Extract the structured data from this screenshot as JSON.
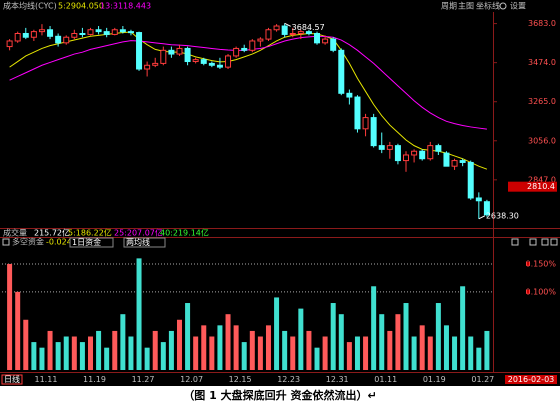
{
  "chart_data": [
    {
      "type": "candlestick",
      "title": "成本均线(CYC)",
      "categories": [
        null,
        null,
        null,
        null,
        "11.11",
        null,
        null,
        null,
        null,
        null,
        "11.19",
        null,
        null,
        null,
        null,
        null,
        "11.27",
        null,
        null,
        null,
        null,
        null,
        "12.07",
        null,
        null,
        null,
        null,
        null,
        "12.15",
        null,
        null,
        null,
        null,
        null,
        "12.23",
        null,
        null,
        null,
        null,
        null,
        "12.31",
        null,
        null,
        null,
        null,
        null,
        "01.11",
        null,
        null,
        null,
        null,
        null,
        "01.19",
        null,
        null,
        null,
        null,
        null,
        "01.27",
        null
      ],
      "open": [
        3560,
        3590,
        3630,
        3610,
        3640,
        3650,
        3615,
        3580,
        3610,
        3630,
        3625,
        3650,
        3640,
        3625,
        3650,
        3640,
        3635,
        3440,
        3460,
        3470,
        3540,
        3520,
        3550,
        3480,
        3490,
        3470,
        3460,
        3450,
        3510,
        3550,
        3540,
        3590,
        3600,
        3650,
        3670,
        3625,
        3630,
        3640,
        3630,
        3580,
        3600,
        3540,
        3310,
        3290,
        3120,
        3180,
        3030,
        3010,
        3030,
        2950,
        2980,
        3000,
        2960,
        3030,
        2990,
        2920,
        2950,
        2940,
        2750,
        2730
      ],
      "high": [
        3600,
        3640,
        3660,
        3650,
        3680,
        3670,
        3630,
        3620,
        3650,
        3660,
        3660,
        3670,
        3660,
        3660,
        3670,
        3650,
        3640,
        3480,
        3500,
        3560,
        3560,
        3570,
        3560,
        3500,
        3500,
        3480,
        3500,
        3520,
        3560,
        3570,
        3600,
        3610,
        3660,
        3680,
        3684.57,
        3660,
        3650,
        3650,
        3640,
        3620,
        3610,
        3550,
        3330,
        3300,
        3200,
        3200,
        3100,
        3050,
        3040,
        3000,
        3010,
        3010,
        3050,
        3040,
        3000,
        2960,
        2960,
        2950,
        2780,
        2740
      ],
      "low": [
        3540,
        3580,
        3600,
        3590,
        3620,
        3600,
        3560,
        3570,
        3600,
        3610,
        3620,
        3625,
        3610,
        3620,
        3630,
        3620,
        3430,
        3400,
        3450,
        3460,
        3500,
        3510,
        3460,
        3470,
        3460,
        3450,
        3440,
        3440,
        3500,
        3530,
        3530,
        3560,
        3590,
        3640,
        3610,
        3610,
        3600,
        3620,
        3570,
        3570,
        3530,
        3300,
        3250,
        3100,
        3080,
        3020,
        2990,
        2960,
        2930,
        2890,
        2940,
        2950,
        2950,
        2980,
        2920,
        2900,
        2920,
        2740,
        2638.3,
        2650
      ],
      "close": [
        3590,
        3630,
        3610,
        3640,
        3650,
        3615,
        3580,
        3610,
        3630,
        3625,
        3650,
        3640,
        3625,
        3650,
        3640,
        3635,
        3440,
        3460,
        3470,
        3540,
        3520,
        3550,
        3480,
        3490,
        3470,
        3460,
        3450,
        3510,
        3550,
        3540,
        3590,
        3600,
        3650,
        3670,
        3625,
        3630,
        3640,
        3630,
        3580,
        3600,
        3540,
        3310,
        3290,
        3120,
        3180,
        3030,
        3010,
        3030,
        2950,
        2980,
        3000,
        2960,
        3030,
        3000,
        2920,
        2950,
        2940,
        2750,
        2735,
        2660
      ],
      "up_color": "#ff3c3c",
      "down_color": "#54ffff",
      "series": [
        {
          "name": "5:2904.050",
          "color": "#e6e600",
          "values": [
            3450,
            3480,
            3510,
            3530,
            3550,
            3565,
            3575,
            3585,
            3595,
            3605,
            3615,
            3620,
            3625,
            3630,
            3635,
            3638,
            3600,
            3570,
            3545,
            3535,
            3530,
            3530,
            3520,
            3505,
            3495,
            3485,
            3478,
            3480,
            3490,
            3505,
            3520,
            3540,
            3565,
            3590,
            3610,
            3620,
            3625,
            3630,
            3628,
            3615,
            3600,
            3540,
            3470,
            3390,
            3320,
            3250,
            3190,
            3140,
            3100,
            3060,
            3030,
            3010,
            3005,
            3000,
            2990,
            2975,
            2960,
            2940,
            2920,
            2904.05
          ]
        },
        {
          "name": "13:3118.443",
          "color": "#ff00ff",
          "values": [
            3380,
            3400,
            3420,
            3440,
            3460,
            3475,
            3490,
            3505,
            3520,
            3530,
            3545,
            3555,
            3565,
            3575,
            3585,
            3592,
            3590,
            3585,
            3580,
            3575,
            3570,
            3568,
            3565,
            3560,
            3555,
            3550,
            3545,
            3542,
            3540,
            3540,
            3545,
            3550,
            3560,
            3575,
            3590,
            3600,
            3608,
            3612,
            3615,
            3614,
            3610,
            3595,
            3570,
            3540,
            3505,
            3470,
            3430,
            3390,
            3350,
            3310,
            3270,
            3235,
            3205,
            3180,
            3160,
            3148,
            3138,
            3130,
            3124,
            3118.443
          ]
        }
      ],
      "ylim": [
        2600,
        3745
      ],
      "yticks": [
        {
          "value": 3683,
          "label": "3683.0"
        },
        {
          "value": 3474,
          "label": "3474.0"
        },
        {
          "value": 3265,
          "label": "3265.0"
        },
        {
          "value": 3056,
          "label": "3056.0"
        },
        {
          "value": 2847,
          "label": "2847.0"
        }
      ],
      "last_price": 2810.4,
      "annotations": [
        {
          "index": 34,
          "value": 3684.57,
          "label": "3684.57"
        },
        {
          "index": 58,
          "value": 2638.3,
          "label": "2638.30"
        }
      ]
    },
    {
      "type": "bar",
      "title": "多空资金",
      "subtitle": "-0.024%",
      "values": [
        0.15,
        0.1,
        0.05,
        0.01,
        0,
        0.03,
        0.01,
        0.02,
        0.02,
        0.01,
        0.02,
        0.03,
        0,
        0.03,
        0.06,
        0.02,
        0.16,
        0,
        0.03,
        0.01,
        0.03,
        0.05,
        0.08,
        0.02,
        0.04,
        0.02,
        0.04,
        0.06,
        0.04,
        0.01,
        0.03,
        0.02,
        0.04,
        0.09,
        0.03,
        0.02,
        0.07,
        0.03,
        0,
        0.02,
        0.08,
        0.06,
        0.01,
        0.02,
        0.02,
        0.11,
        0.06,
        0.03,
        0.06,
        0.08,
        0.02,
        0.04,
        0.02,
        0.08,
        0.04,
        0.02,
        0.11,
        0.02,
        0,
        0.03
      ],
      "colors": [
        "#ff5a5a",
        "#ff5a5a",
        "#ff5a5a",
        "#40e0d0",
        "#40e0d0",
        "#ff5a5a",
        "#40e0d0",
        "#40e0d0",
        "#ff5a5a",
        "#40e0d0",
        "#ff5a5a",
        "#40e0d0",
        "#40e0d0",
        "#ff5a5a",
        "#40e0d0",
        "#40e0d0",
        "#40e0d0",
        "#40e0d0",
        "#ff5a5a",
        "#40e0d0",
        "#40e0d0",
        "#ff5a5a",
        "#40e0d0",
        "#ff5a5a",
        "#ff5a5a",
        "#ff5a5a",
        "#40e0d0",
        "#ff5a5a",
        "#ff5a5a",
        "#40e0d0",
        "#ff5a5a",
        "#ff5a5a",
        "#ff5a5a",
        "#40e0d0",
        "#40e0d0",
        "#ff5a5a",
        "#40e0d0",
        "#ff5a5a",
        "#40e0d0",
        "#ff5a5a",
        "#40e0d0",
        "#40e0d0",
        "#ff5a5a",
        "#40e0d0",
        "#ff5a5a",
        "#40e0d0",
        "#40e0d0",
        "#ff5a5a",
        "#ff5a5a",
        "#40e0d0",
        "#40e0d0",
        "#ff5a5a",
        "#ff5a5a",
        "#40e0d0",
        "#40e0d0",
        "#40e0d0",
        "#40e0d0",
        "#40e0d0",
        "#40e0d0",
        "#40e0d0"
      ],
      "ylim": [
        -0.04,
        0.175
      ],
      "yticks": [
        {
          "value": 0.15,
          "label": "0.150%"
        },
        {
          "value": 0.1,
          "label": "0.100%"
        }
      ]
    }
  ],
  "toolbar": [
    "周期",
    "主图",
    "坐标线",
    "设置"
  ],
  "volume_header": [
    "成交量",
    "215.72亿",
    "5:186.22亿",
    "25:207.07亿",
    "40:219.14亿"
  ],
  "controls": [
    "1日资金",
    "两均线"
  ],
  "period": "日线",
  "date": "2016-02-03",
  "caption": "（图 1  大盘探底回升  资金依然流出）↵"
}
